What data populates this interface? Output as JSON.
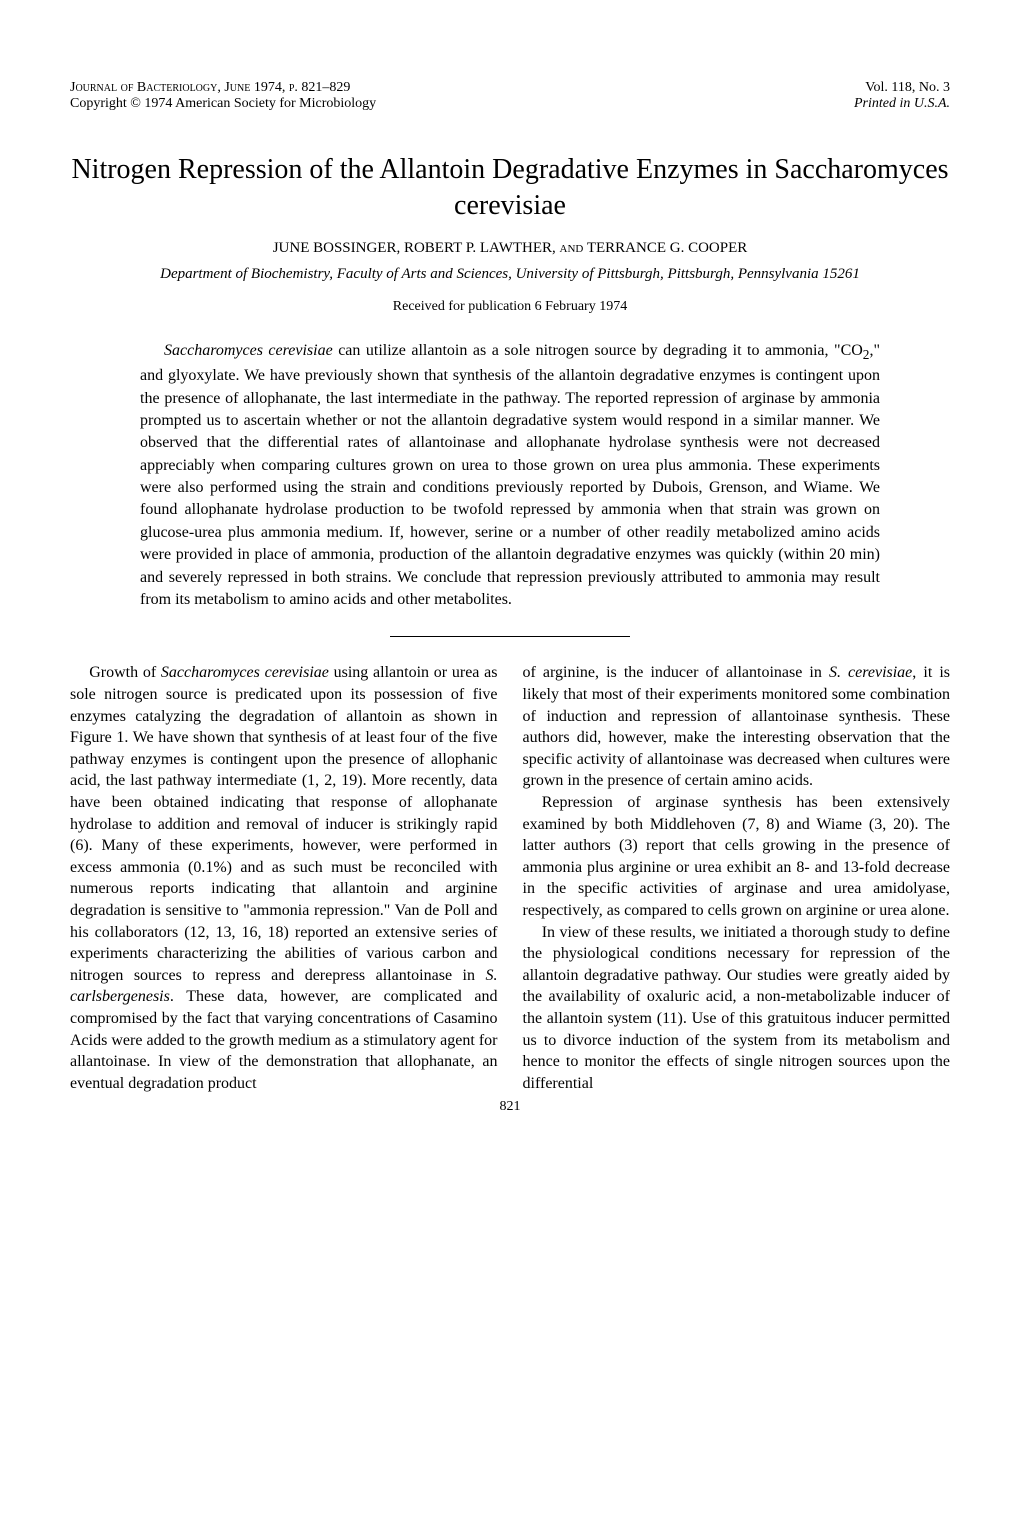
{
  "header": {
    "journal_line": "Journal of Bacteriology, June 1974, p. 821–829",
    "copyright_line": "Copyright © 1974   American Society for Microbiology",
    "volume_line": "Vol. 118, No. 3",
    "printed_line": "Printed in U.S.A."
  },
  "title": "Nitrogen Repression of the Allantoin Degradative Enzymes in Saccharomyces cerevisiae",
  "authors": "JUNE BOSSINGER, ROBERT P. LAWTHER, and TERRANCE G. COOPER",
  "affiliation": "Department of Biochemistry, Faculty of Arts and Sciences, University of Pittsburgh, Pittsburgh, Pennsylvania 15261",
  "received": "Received for publication 6 February 1974",
  "abstract": "Saccharomyces cerevisiae can utilize allantoin as a sole nitrogen source by degrading it to ammonia, \"CO₂,\" and glyoxylate. We have previously shown that synthesis of the allantoin degradative enzymes is contingent upon the presence of allophanate, the last intermediate in the pathway. The reported repression of arginase by ammonia prompted us to ascertain whether or not the allantoin degradative system would respond in a similar manner. We observed that the differential rates of allantoinase and allophanate hydrolase synthesis were not decreased appreciably when comparing cultures grown on urea to those grown on urea plus ammonia. These experiments were also performed using the strain and conditions previously reported by Dubois, Grenson, and Wiame. We found allophanate hydrolase production to be twofold repressed by ammonia when that strain was grown on glucose-urea plus ammonia medium. If, however, serine or a number of other readily metabolized amino acids were provided in place of ammonia, production of the allantoin degradative enzymes was quickly (within 20 min) and severely repressed in both strains. We conclude that repression previously attributed to ammonia may result from its metabolism to amino acids and other metabolites.",
  "body": {
    "left_column": "Growth of Saccharomyces cerevisiae using allantoin or urea as sole nitrogen source is predicated upon its possession of five enzymes catalyzing the degradation of allantoin as shown in Figure 1. We have shown that synthesis of at least four of the five pathway enzymes is contingent upon the presence of allophanic acid, the last pathway intermediate (1, 2, 19). More recently, data have been obtained indicating that response of allophanate hydrolase to addition and removal of inducer is strikingly rapid (6). Many of these experiments, however, were performed in excess ammonia (0.1%) and as such must be reconciled with numerous reports indicating that allantoin and arginine degradation is sensitive to \"ammonia repression.\" Van de Poll and his collaborators (12, 13, 16, 18) reported an extensive series of experiments characterizing the abilities of various carbon and nitrogen sources to repress and derepress allantoinase in S. carlsbergenesis. These data, however, are complicated and compromised by the fact that varying concentrations of Casamino Acids were added to the growth medium as a stimulatory agent for allantoinase. In view of the demonstration that allophanate, an eventual degradation product",
    "right_column_p1": "of arginine, is the inducer of allantoinase in S. cerevisiae, it is likely that most of their experiments monitored some combination of induction and repression of allantoinase synthesis. These authors did, however, make the interesting observation that the specific activity of allantoinase was decreased when cultures were grown in the presence of certain amino acids.",
    "right_column_p2": "Repression of arginase synthesis has been extensively examined by both Middlehoven (7, 8) and Wiame (3, 20). The latter authors (3) report that cells growing in the presence of ammonia plus arginine or urea exhibit an 8- and 13-fold decrease in the specific activities of arginase and urea amidolyase, respectively, as compared to cells grown on arginine or urea alone.",
    "right_column_p3": "In view of these results, we initiated a thorough study to define the physiological conditions necessary for repression of the allantoin degradative pathway. Our studies were greatly aided by the availability of oxaluric acid, a non-metabolizable inducer of the allantoin system (11). Use of this gratuitous inducer permitted us to divorce induction of the system from its metabolism and hence to monitor the effects of single nitrogen sources upon the differential"
  },
  "page_number": "821",
  "styling": {
    "background_color": "#ffffff",
    "text_color": "#000000",
    "title_fontsize": 28,
    "body_fontsize": 16,
    "header_fontsize": 14,
    "font_family": "Times New Roman"
  }
}
